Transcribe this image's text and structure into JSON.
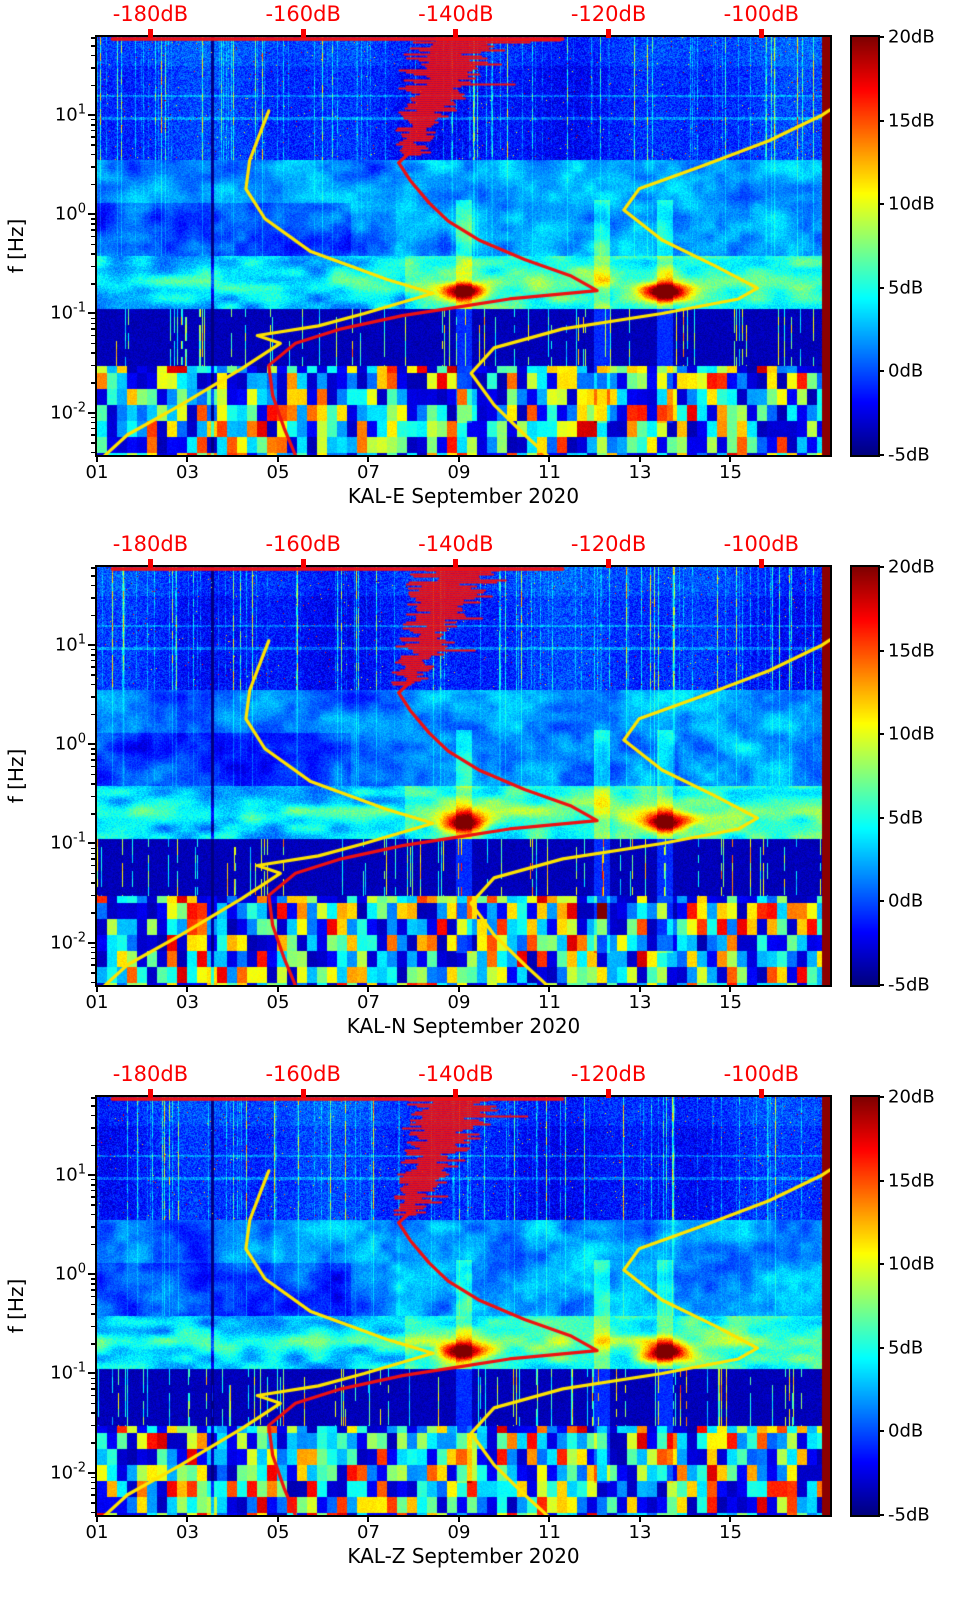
{
  "chart_data": {
    "type": "heatmap",
    "subtype": "seismic spectrogram (dB) with PSD / noise-model overlay curves, 3 components",
    "panels": [
      {
        "component": "KAL-E",
        "title": "KAL-E September 2020",
        "seed": 11
      },
      {
        "component": "KAL-N",
        "title": "KAL-N September 2020",
        "seed": 29
      },
      {
        "component": "KAL-Z",
        "title": "KAL-Z September 2020",
        "seed": 53
      }
    ],
    "axes": {
      "ylabel": "f [Hz]",
      "y_scale": "log",
      "y_range_hz": [
        0.00375,
        61
      ],
      "y_tick_exponents": [
        1,
        0,
        -1,
        -2
      ],
      "y_tick_labels": [
        {
          "base": "10",
          "exp": "1"
        },
        {
          "base": "10",
          "exp": "0"
        },
        {
          "base": "10",
          "exp": "-1"
        },
        {
          "base": "10",
          "exp": "-2"
        }
      ],
      "x_range_days": [
        1,
        17.2
      ],
      "x_tick_days": [
        1,
        3,
        5,
        7,
        9,
        11,
        13,
        15
      ],
      "x_tick_labels": [
        "01",
        "03",
        "05",
        "07",
        "09",
        "11",
        "13",
        "15"
      ],
      "top_axis": {
        "color": "#fb0000",
        "range_db": [
          -187,
          -91
        ],
        "tick_db": [
          -180,
          -160,
          -140,
          -120,
          -100
        ],
        "tick_labels": [
          "-180dB",
          "-160dB",
          "-140dB",
          "-120dB",
          "-100dB"
        ]
      },
      "colorbar": {
        "colormap": "jet",
        "range_db": [
          -5,
          20
        ],
        "tick_values": [
          20,
          15,
          10,
          5,
          0,
          -5
        ],
        "tick_labels": [
          "20dB",
          "15dB",
          "10dB",
          "5dB",
          "0dB",
          "-5dB"
        ]
      }
    },
    "spectrogram": {
      "value_range_db": [
        -5,
        20
      ],
      "hotspots": [
        {
          "day": 9.1,
          "freq_hz": 0.165,
          "amp_db": 15.5
        },
        {
          "day": 13.55,
          "freq_hz": 0.165,
          "amp_db": 16.5
        }
      ],
      "bright_event_days": [
        9.1,
        12.15,
        13.55
      ],
      "dark_column_day": 3.55,
      "dark_band_hz": [
        0.03,
        0.11
      ],
      "blocky_below_hz": 0.03,
      "microseism_band_hz": [
        0.11,
        0.38
      ],
      "right_edge_saturated_db": 20
    },
    "overlays": {
      "colors": {
        "median_psd": "#ee1111",
        "noise_models": "#ffe400"
      },
      "red_top_clip_line_db": [
        -185,
        -126
      ],
      "red_median_curve_db_hz": [
        [
          -161,
          0.0037
        ],
        [
          -162.5,
          0.007
        ],
        [
          -164,
          0.015
        ],
        [
          -164.5,
          0.03
        ],
        [
          -161,
          0.05
        ],
        [
          -155,
          0.07
        ],
        [
          -147,
          0.095
        ],
        [
          -140,
          0.115
        ],
        [
          -133,
          0.14
        ],
        [
          -121.5,
          0.17
        ],
        [
          -125,
          0.24
        ],
        [
          -131,
          0.35
        ],
        [
          -137,
          0.55
        ],
        [
          -141,
          0.85
        ],
        [
          -143.5,
          1.3
        ],
        [
          -146,
          2.2
        ],
        [
          -147.5,
          3.3
        ],
        [
          -146,
          4.2
        ]
      ],
      "yellow_low_curve_db_hz": [
        [
          -186,
          0.0037
        ],
        [
          -183,
          0.006
        ],
        [
          -176,
          0.012
        ],
        [
          -168,
          0.028
        ],
        [
          -163,
          0.05
        ],
        [
          -166,
          0.06
        ],
        [
          -158,
          0.075
        ],
        [
          -152,
          0.1
        ],
        [
          -143,
          0.16
        ],
        [
          -149,
          0.22
        ],
        [
          -159,
          0.42
        ],
        [
          -165,
          0.9
        ],
        [
          -167.5,
          1.8
        ],
        [
          -167,
          3.5
        ],
        [
          -165.5,
          7
        ],
        [
          -164.5,
          11
        ]
      ],
      "yellow_high_curve_db_hz": [
        [
          -128,
          0.0037
        ],
        [
          -131,
          0.006
        ],
        [
          -135,
          0.012
        ],
        [
          -138,
          0.025
        ],
        [
          -135,
          0.045
        ],
        [
          -126,
          0.07
        ],
        [
          -113,
          0.1
        ],
        [
          -103,
          0.14
        ],
        [
          -100.5,
          0.18
        ],
        [
          -106,
          0.3
        ],
        [
          -113,
          0.55
        ],
        [
          -118,
          1.1
        ],
        [
          -116,
          1.8
        ],
        [
          -108,
          3.0
        ],
        [
          -99,
          5.5
        ],
        [
          -92,
          10
        ],
        [
          -88,
          16
        ]
      ]
    }
  }
}
